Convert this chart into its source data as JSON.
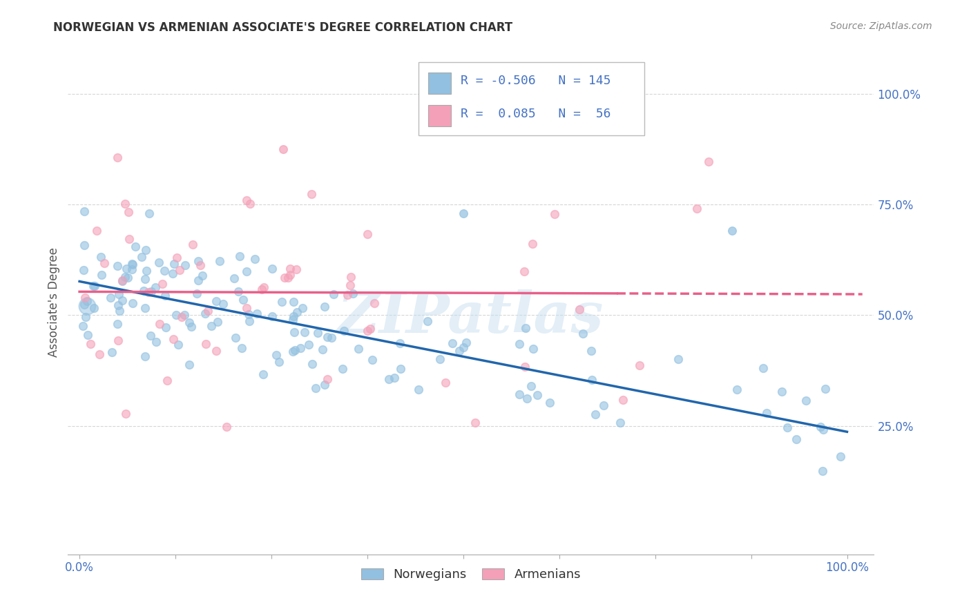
{
  "title": "NORWEGIAN VS ARMENIAN ASSOCIATE'S DEGREE CORRELATION CHART",
  "source": "Source: ZipAtlas.com",
  "ylabel": "Associate's Degree",
  "legend_r_norwegian": "-0.506",
  "legend_n_norwegian": "145",
  "legend_r_armenian": "0.085",
  "legend_n_armenian": "56",
  "norwegian_color": "#92c0e0",
  "armenian_color": "#f4a0b8",
  "norwegian_line_color": "#2166ac",
  "armenian_line_color": "#e8608a",
  "background_color": "#ffffff",
  "watermark": "ZIPatlas",
  "ytick_labels": [
    "25.0%",
    "50.0%",
    "75.0%",
    "100.0%"
  ],
  "ytick_vals": [
    0.25,
    0.5,
    0.75,
    1.0
  ],
  "tick_color": "#4472c4"
}
